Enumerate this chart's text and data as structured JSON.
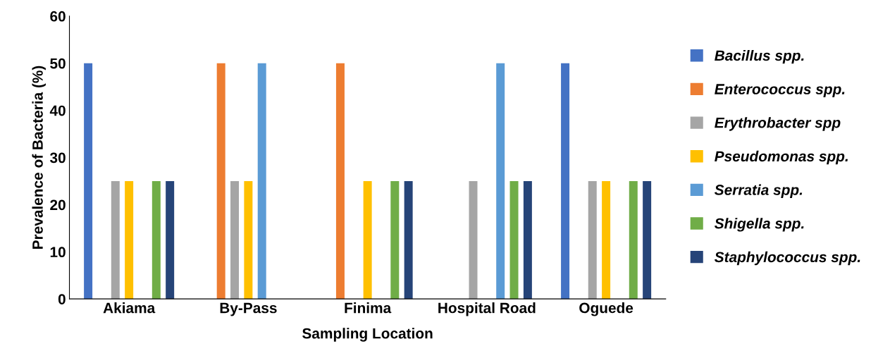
{
  "chart_data": {
    "type": "bar",
    "xlabel": "Sampling Location",
    "ylabel": "Prevalence of Bacteria (%)",
    "categories": [
      "Akiama",
      "By-Pass",
      "Finima",
      "Hospital Road",
      "Oguede"
    ],
    "series": [
      {
        "name": "Bacillus spp.",
        "color": "#4472c4",
        "values": [
          50,
          0,
          0,
          0,
          50
        ]
      },
      {
        "name": "Enterococcus spp.",
        "color": "#ed7d31",
        "values": [
          0,
          50,
          50,
          0,
          0
        ]
      },
      {
        "name": "Erythrobacter spp",
        "color": "#a5a5a5",
        "values": [
          25,
          25,
          0,
          25,
          25
        ]
      },
      {
        "name": "Pseudomonas spp.",
        "color": "#ffc000",
        "values": [
          25,
          25,
          25,
          0,
          25
        ]
      },
      {
        "name": "Serratia spp.",
        "color": "#5b9bd5",
        "values": [
          0,
          50,
          0,
          50,
          0
        ]
      },
      {
        "name": "Shigella spp.",
        "color": "#70ad47",
        "values": [
          25,
          0,
          25,
          25,
          25
        ]
      },
      {
        "name": "Staphylococcus spp.",
        "color": "#264478",
        "values": [
          25,
          0,
          25,
          25,
          25
        ]
      }
    ],
    "ylim": [
      0,
      60
    ],
    "yticks": [
      0,
      10,
      20,
      30,
      40,
      50,
      60
    ],
    "grid": false,
    "legend": "right"
  }
}
